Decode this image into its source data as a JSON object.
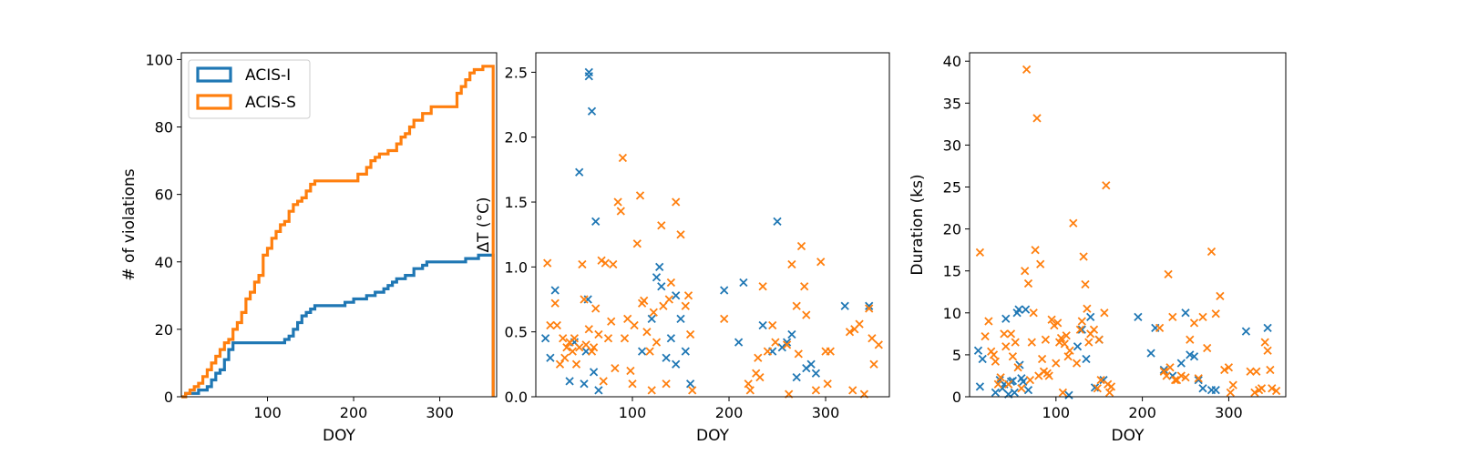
{
  "chart_data": [
    {
      "type": "line",
      "drawstyle": "step",
      "xlabel": "DOY",
      "ylabel": "# of violations",
      "xlim": [
        0,
        366
      ],
      "ylim": [
        0,
        102
      ],
      "xticks": [
        100,
        200,
        300
      ],
      "yticks": [
        0,
        20,
        40,
        60,
        80,
        100
      ],
      "legend": "top-left",
      "series": [
        {
          "name": "ACIS-I",
          "color": "#1f77b4",
          "x": [
            0,
            5,
            20,
            30,
            35,
            40,
            45,
            50,
            55,
            60,
            110,
            120,
            125,
            130,
            135,
            140,
            145,
            150,
            155,
            160,
            190,
            200,
            215,
            225,
            235,
            240,
            245,
            250,
            260,
            270,
            280,
            285,
            300,
            330,
            345,
            362
          ],
          "y": [
            0,
            1,
            2,
            3,
            5,
            7,
            8,
            11,
            14,
            16,
            16,
            17,
            18,
            20,
            22,
            24,
            25,
            26,
            27,
            27,
            28,
            29,
            30,
            31,
            32,
            33,
            34,
            35,
            36,
            38,
            39,
            40,
            40,
            41,
            42,
            42
          ]
        },
        {
          "name": "ACIS-S",
          "color": "#ff7f0e",
          "x": [
            0,
            5,
            10,
            15,
            20,
            25,
            30,
            35,
            40,
            45,
            50,
            55,
            60,
            65,
            70,
            75,
            80,
            85,
            90,
            95,
            100,
            105,
            110,
            115,
            120,
            125,
            130,
            135,
            140,
            145,
            150,
            155,
            200,
            205,
            215,
            220,
            225,
            230,
            240,
            250,
            255,
            260,
            265,
            270,
            280,
            290,
            300,
            320,
            325,
            330,
            335,
            340,
            350,
            362
          ],
          "y": [
            0,
            1,
            2,
            3,
            4,
            6,
            8,
            10,
            12,
            14,
            16,
            17,
            20,
            22,
            25,
            29,
            31,
            34,
            36,
            42,
            44,
            47,
            49,
            51,
            52,
            55,
            57,
            58,
            59,
            61,
            63,
            64,
            64,
            66,
            68,
            70,
            71,
            72,
            73,
            75,
            77,
            78,
            80,
            82,
            84,
            86,
            86,
            90,
            92,
            94,
            96,
            97,
            98,
            98
          ]
        }
      ]
    },
    {
      "type": "scatter",
      "marker": "x",
      "xlabel": "DOY",
      "ylabel": "ΔT (°C)",
      "xlim": [
        0,
        366
      ],
      "ylim": [
        0,
        2.65
      ],
      "xticks": [
        100,
        200,
        300
      ],
      "yticks": [
        0.0,
        0.5,
        1.0,
        1.5,
        2.0,
        2.5
      ],
      "ytick_labels": [
        "0.0",
        "0.5",
        "1.0",
        "1.5",
        "2.0",
        "2.5"
      ],
      "series": [
        {
          "name": "ACIS-I",
          "color": "#1f77b4",
          "x": [
            10,
            15,
            20,
            35,
            40,
            45,
            50,
            52,
            54,
            55,
            55,
            58,
            60,
            62,
            65,
            110,
            120,
            125,
            128,
            130,
            135,
            140,
            145,
            145,
            150,
            155,
            160,
            195,
            210,
            215,
            235,
            245,
            250,
            255,
            260,
            265,
            270,
            280,
            285,
            290,
            320,
            345
          ],
          "y": [
            0.45,
            0.3,
            0.82,
            0.12,
            0.42,
            1.73,
            0.1,
            0.35,
            0.75,
            2.5,
            2.47,
            2.2,
            0.19,
            1.35,
            0.05,
            0.35,
            0.6,
            0.92,
            1.0,
            0.85,
            0.3,
            0.45,
            0.25,
            0.78,
            0.6,
            0.35,
            0.1,
            0.82,
            0.42,
            0.88,
            0.55,
            0.35,
            1.35,
            0.38,
            0.42,
            0.48,
            0.15,
            0.22,
            0.25,
            0.18,
            0.7,
            0.7
          ]
        },
        {
          "name": "ACIS-S",
          "color": "#ff7f0e",
          "x": [
            12,
            15,
            20,
            22,
            25,
            28,
            30,
            32,
            35,
            38,
            40,
            42,
            45,
            48,
            50,
            52,
            55,
            58,
            60,
            62,
            65,
            68,
            70,
            72,
            75,
            78,
            80,
            82,
            85,
            88,
            90,
            92,
            95,
            98,
            100,
            102,
            105,
            108,
            110,
            112,
            115,
            118,
            120,
            122,
            125,
            130,
            132,
            135,
            138,
            140,
            145,
            150,
            155,
            158,
            160,
            162,
            195,
            220,
            222,
            228,
            230,
            232,
            235,
            240,
            245,
            248,
            260,
            262,
            265,
            270,
            272,
            275,
            278,
            280,
            290,
            295,
            300,
            302,
            305,
            325,
            328,
            330,
            335,
            340,
            345,
            348,
            350,
            355
          ],
          "y": [
            1.03,
            0.55,
            0.72,
            0.55,
            0.25,
            0.45,
            0.3,
            0.38,
            0.42,
            0.35,
            0.45,
            0.25,
            0.38,
            1.02,
            0.75,
            0.4,
            0.52,
            0.35,
            0.38,
            0.68,
            0.48,
            1.05,
            0.12,
            1.03,
            0.45,
            0.58,
            1.02,
            0.22,
            1.5,
            1.43,
            1.84,
            0.45,
            0.6,
            0.2,
            0.1,
            0.55,
            1.18,
            1.55,
            0.72,
            0.74,
            0.5,
            0.35,
            0.05,
            0.65,
            0.42,
            1.32,
            0.7,
            0.1,
            0.75,
            0.88,
            1.5,
            1.25,
            0.7,
            0.78,
            0.48,
            0.05,
            0.6,
            0.1,
            0.05,
            0.18,
            0.3,
            0.15,
            0.85,
            0.35,
            0.55,
            0.42,
            0.4,
            0.02,
            1.02,
            0.7,
            0.33,
            1.16,
            0.85,
            0.63,
            0.05,
            1.04,
            0.35,
            0.1,
            0.35,
            0.5,
            0.05,
            0.52,
            0.56,
            0.02,
            0.68,
            0.45,
            0.25,
            0.4
          ]
        }
      ]
    },
    {
      "type": "scatter",
      "marker": "x",
      "xlabel": "DOY",
      "ylabel": "Duration (ks)",
      "xlim": [
        0,
        366
      ],
      "ylim": [
        0,
        41
      ],
      "xticks": [
        100,
        200,
        300
      ],
      "yticks": [
        0,
        5,
        10,
        15,
        20,
        25,
        30,
        35,
        40
      ],
      "series": [
        {
          "name": "ACIS-I",
          "color": "#1f77b4",
          "x": [
            10,
            12,
            15,
            30,
            35,
            38,
            40,
            42,
            45,
            48,
            50,
            52,
            55,
            57,
            58,
            60,
            62,
            65,
            68,
            115,
            125,
            130,
            135,
            140,
            145,
            150,
            155,
            195,
            210,
            215,
            225,
            235,
            245,
            250,
            255,
            260,
            265,
            270,
            280,
            285,
            320,
            345
          ],
          "y": [
            5.5,
            1.2,
            4.5,
            0.5,
            2.0,
            1.0,
            1.5,
            9.3,
            0.3,
            1.8,
            1.9,
            0.5,
            10.0,
            10.4,
            3.8,
            2.2,
            1.8,
            10.4,
            0.8,
            0.2,
            6.0,
            8.0,
            4.5,
            9.5,
            1.1,
            6.8,
            2.0,
            9.5,
            5.2,
            8.2,
            3.2,
            2.5,
            4.0,
            10.0,
            5.0,
            4.8,
            2.0,
            1.0,
            0.8,
            0.8,
            7.8,
            8.2
          ]
        },
        {
          "name": "ACIS-S",
          "color": "#ff7f0e",
          "x": [
            12,
            18,
            22,
            25,
            28,
            30,
            33,
            36,
            40,
            42,
            45,
            48,
            50,
            53,
            56,
            60,
            64,
            66,
            68,
            70,
            72,
            74,
            76,
            78,
            80,
            82,
            84,
            86,
            88,
            90,
            92,
            95,
            98,
            100,
            102,
            104,
            106,
            108,
            110,
            112,
            114,
            116,
            120,
            124,
            128,
            130,
            132,
            134,
            136,
            138,
            140,
            144,
            148,
            150,
            152,
            156,
            158,
            160,
            162,
            164,
            220,
            225,
            228,
            230,
            232,
            235,
            238,
            240,
            245,
            250,
            255,
            260,
            265,
            270,
            275,
            280,
            285,
            290,
            295,
            300,
            302,
            305,
            325,
            330,
            332,
            335,
            338,
            342,
            345,
            348,
            350,
            355
          ],
          "y": [
            17.2,
            7.2,
            9.0,
            5.4,
            5.0,
            4.2,
            1.5,
            2.3,
            7.5,
            6.0,
            1.5,
            7.5,
            4.8,
            6.5,
            3.5,
            1.0,
            15.0,
            39.0,
            13.5,
            2.0,
            6.5,
            10.0,
            17.5,
            33.2,
            2.5,
            15.8,
            4.5,
            3.0,
            6.8,
            2.8,
            2.5,
            9.2,
            8.5,
            4.0,
            8.8,
            6.5,
            7.0,
            0.5,
            6.3,
            7.3,
            4.8,
            5.5,
            20.7,
            4.0,
            8.0,
            9.0,
            16.7,
            13.4,
            10.5,
            6.5,
            7.5,
            8.0,
            1.0,
            6.8,
            2.0,
            10.0,
            25.2,
            1.5,
            0.5,
            1.2,
            8.2,
            3.0,
            2.5,
            14.6,
            3.5,
            9.5,
            2.0,
            2.0,
            2.5,
            2.3,
            6.8,
            8.8,
            2.2,
            9.5,
            5.8,
            17.3,
            9.9,
            12.0,
            3.2,
            3.5,
            0.5,
            1.4,
            3.0,
            0.5,
            3.0,
            0.8,
            1.0,
            6.5,
            5.5,
            3.2,
            1.0,
            0.7
          ]
        }
      ]
    }
  ]
}
